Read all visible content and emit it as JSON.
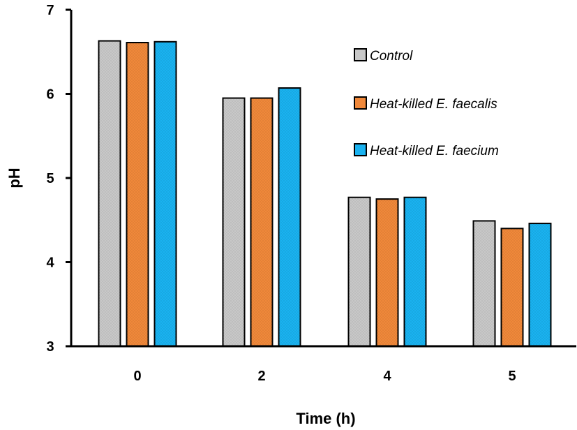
{
  "chart_data": {
    "type": "bar",
    "categories": [
      "0",
      "2",
      "4",
      "5"
    ],
    "series": [
      {
        "name": "Control",
        "values": [
          6.63,
          5.95,
          4.77,
          4.49
        ],
        "color": "#c8c8c8"
      },
      {
        "name": "Heat-killed E. faecalis",
        "values": [
          6.61,
          5.95,
          4.75,
          4.4
        ],
        "color": "#f0883a"
      },
      {
        "name": "Heat-killed E. faecium",
        "values": [
          6.62,
          6.07,
          4.77,
          4.46
        ],
        "color": "#1ab2f0"
      }
    ],
    "title": "",
    "xlabel": "Time (h)",
    "ylabel": "pH",
    "ylim": [
      3,
      7
    ],
    "yticks": [
      "3",
      "4",
      "5",
      "6",
      "7"
    ],
    "grid": false,
    "legend_position": "top-right"
  }
}
